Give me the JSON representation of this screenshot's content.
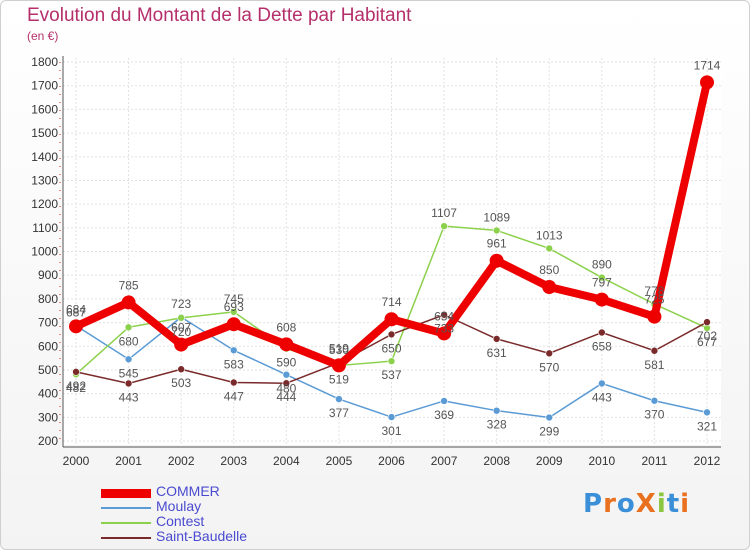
{
  "header": {
    "title": "Evolution du Montant de la Dette par Habitant",
    "subtitle": "(en €)"
  },
  "logo": {
    "text": "ProXiti",
    "letters": [
      "P",
      "r",
      "o",
      "X",
      "i",
      "t",
      "i"
    ],
    "colors": [
      "#3a8fd8",
      "#e8701e",
      "#3a8fd8",
      "#e8701e",
      "#8cc63f",
      "#3a8fd8",
      "#e8701e"
    ]
  },
  "chart_data": {
    "type": "line",
    "title": "Evolution du Montant de la Dette par Habitant",
    "subtitle": "(en €)",
    "xlabel": "",
    "ylabel": "",
    "ylim": [
      200,
      1800
    ],
    "yticks": [
      200,
      300,
      400,
      500,
      600,
      700,
      800,
      900,
      1000,
      1100,
      1200,
      1300,
      1400,
      1500,
      1600,
      1700,
      1800
    ],
    "grid": true,
    "legend_position": "bottom-left",
    "categories": [
      "2000",
      "2001",
      "2002",
      "2003",
      "2004",
      "2005",
      "2006",
      "2007",
      "2008",
      "2009",
      "2010",
      "2011",
      "2012"
    ],
    "series": [
      {
        "name": "COMMER",
        "color": "#ee0000",
        "values": [
          684,
          785,
          607,
          693,
          608,
          519,
          714,
          654,
          961,
          850,
          797,
          725,
          1714
        ],
        "labels": [
          "684",
          "785",
          "607",
          "693",
          "608",
          "519",
          "714",
          "654",
          "961",
          "850",
          "797",
          "725",
          "1714"
        ]
      },
      {
        "name": "Moulay",
        "color": "#5b9bd5",
        "values": [
          687,
          545,
          723,
          583,
          480,
          377,
          301,
          369,
          328,
          299,
          443,
          370,
          321
        ],
        "labels": [
          "687",
          "545",
          "723",
          "583",
          "480",
          "377",
          "301",
          "369",
          "328",
          "299",
          "443",
          "370",
          "321"
        ]
      },
      {
        "name": "Contest",
        "color": "#8cd14b",
        "values": [
          482,
          680,
          720,
          745,
          590,
          519,
          537,
          1107,
          1089,
          1013,
          890,
          778,
          677
        ],
        "labels": [
          "482",
          "680",
          "720",
          "745",
          "590",
          "519",
          "537",
          "1107",
          "1089",
          "1013",
          "890",
          "778",
          "677"
        ]
      },
      {
        "name": "Saint-Baudelle",
        "color": "#7a2a2a",
        "values": [
          492,
          443,
          503,
          447,
          444,
          530,
          650,
          733,
          631,
          570,
          658,
          581,
          702
        ],
        "labels": [
          "492",
          "443",
          "503",
          "447",
          "444",
          "530",
          "650",
          "733",
          "631",
          "570",
          "658",
          "581",
          "702"
        ]
      }
    ]
  }
}
